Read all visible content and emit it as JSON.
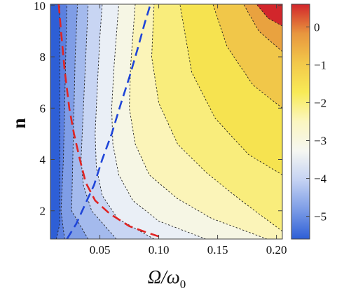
{
  "chart_data": {
    "type": "heatmap",
    "subtype": "filled-contour",
    "title": "",
    "xlabel": "Ω/ω",
    "xlabel_sub": "0",
    "ylabel": "n",
    "xlim": [
      0.008,
      0.205
    ],
    "ylim": [
      0.9,
      10.05
    ],
    "x_ticks": [
      0.05,
      0.1,
      0.15,
      0.2
    ],
    "x_tick_labels": [
      "0.05",
      "0.10",
      "0.15",
      "0.20"
    ],
    "y_ticks": [
      2,
      4,
      6,
      8,
      10
    ],
    "y_tick_labels": [
      "2",
      "4",
      "6",
      "8",
      "10"
    ],
    "colorbar": {
      "range": [
        -5.6,
        0.6
      ],
      "ticks": [
        0,
        -1,
        -2,
        -3,
        -4,
        -5
      ],
      "tick_labels": [
        "0",
        "−1",
        "−2",
        "−3",
        "−4",
        "−5"
      ],
      "colormap": [
        "#2e5fd6",
        "#7c9ce6",
        "#c4d2f3",
        "#f6f7f2",
        "#fbf6c0",
        "#f8ea56",
        "#f2c84a",
        "#e8963e",
        "#d2262b"
      ]
    },
    "contour_levels": [
      {
        "value": -5.0,
        "color": "#5b80e0",
        "points": [
          [
            0.013,
            0.9
          ],
          [
            0.016,
            1.5
          ],
          [
            0.016,
            10.05
          ]
        ]
      },
      {
        "value": -4.5,
        "color": "#7f9de6",
        "points": [
          [
            0.02,
            0.9
          ],
          [
            0.017,
            2.0
          ],
          [
            0.019,
            4.0
          ],
          [
            0.02,
            6.0
          ],
          [
            0.021,
            8.0
          ],
          [
            0.022,
            10.05
          ]
        ]
      },
      {
        "value": -4.0,
        "color": "#a4baed",
        "points": [
          [
            0.04,
            0.9
          ],
          [
            0.026,
            2.0
          ],
          [
            0.027,
            4.0
          ],
          [
            0.028,
            6.0
          ],
          [
            0.029,
            8.0
          ],
          [
            0.031,
            10.05
          ]
        ]
      },
      {
        "value": -3.5,
        "color": "#c8d5f3",
        "points": [
          [
            0.064,
            0.9
          ],
          [
            0.043,
            2.0
          ],
          [
            0.036,
            3.0
          ],
          [
            0.034,
            4.0
          ],
          [
            0.036,
            6.0
          ],
          [
            0.038,
            8.0
          ],
          [
            0.04,
            10.05
          ]
        ]
      },
      {
        "value": -3.0,
        "color": "#eaeff6",
        "points": [
          [
            0.096,
            0.9
          ],
          [
            0.065,
            1.7
          ],
          [
            0.052,
            2.6
          ],
          [
            0.047,
            3.7
          ],
          [
            0.046,
            5.0
          ],
          [
            0.048,
            7.0
          ],
          [
            0.05,
            8.8
          ],
          [
            0.052,
            10.05
          ]
        ]
      },
      {
        "value": -2.5,
        "color": "#f6f6e4",
        "points": [
          [
            0.14,
            0.9
          ],
          [
            0.1,
            1.6
          ],
          [
            0.078,
            2.4
          ],
          [
            0.066,
            3.4
          ],
          [
            0.061,
            4.6
          ],
          [
            0.06,
            6.0
          ],
          [
            0.062,
            7.6
          ],
          [
            0.066,
            10.05
          ]
        ]
      },
      {
        "value": -2.0,
        "color": "#fbf4b8",
        "points": [
          [
            0.192,
            0.9
          ],
          [
            0.145,
            1.7
          ],
          [
            0.115,
            2.5
          ],
          [
            0.092,
            3.4
          ],
          [
            0.08,
            4.6
          ],
          [
            0.075,
            6.0
          ],
          [
            0.076,
            7.6
          ],
          [
            0.08,
            10.05
          ]
        ]
      },
      {
        "value": -1.5,
        "color": "#f9ed7c",
        "points": [
          [
            0.205,
            1.2
          ],
          [
            0.17,
            2.4
          ],
          [
            0.14,
            3.5
          ],
          [
            0.116,
            4.6
          ],
          [
            0.1,
            6.2
          ],
          [
            0.094,
            8.0
          ],
          [
            0.096,
            10.05
          ]
        ]
      },
      {
        "value": -1.0,
        "color": "#f6e350",
        "points": [
          [
            0.205,
            3.4
          ],
          [
            0.176,
            4.2
          ],
          [
            0.148,
            5.6
          ],
          [
            0.128,
            7.4
          ],
          [
            0.118,
            10.05
          ]
        ]
      },
      {
        "value": -0.5,
        "color": "#f1c749",
        "points": [
          [
            0.205,
            6.0
          ],
          [
            0.18,
            6.9
          ],
          [
            0.158,
            8.4
          ],
          [
            0.146,
            10.05
          ]
        ]
      },
      {
        "value": 0.0,
        "color": "#e9a23f",
        "points": [
          [
            0.205,
            8.2
          ],
          [
            0.185,
            9.0
          ],
          [
            0.172,
            10.05
          ]
        ]
      },
      {
        "value": 0.5,
        "color": "#d2262b",
        "points": [
          [
            0.205,
            9.2
          ],
          [
            0.193,
            9.5
          ],
          [
            0.183,
            10.05
          ]
        ]
      }
    ],
    "series": [
      {
        "style": "dashed",
        "color": "#e02424",
        "points": [
          [
            0.015,
            10.05
          ],
          [
            0.017,
            9.0
          ],
          [
            0.02,
            7.5
          ],
          [
            0.024,
            6.0
          ],
          [
            0.028,
            5.0
          ],
          [
            0.033,
            4.0
          ],
          [
            0.038,
            3.1
          ],
          [
            0.046,
            2.4
          ],
          [
            0.058,
            1.9
          ],
          [
            0.075,
            1.4
          ],
          [
            0.09,
            1.15
          ],
          [
            0.1,
            1.0
          ]
        ]
      },
      {
        "style": "dashed",
        "color": "#1f45d8",
        "points": [
          [
            0.022,
            0.9
          ],
          [
            0.03,
            1.5
          ],
          [
            0.037,
            2.2
          ],
          [
            0.045,
            3.0
          ],
          [
            0.052,
            4.0
          ],
          [
            0.06,
            5.0
          ],
          [
            0.068,
            6.2
          ],
          [
            0.075,
            7.2
          ],
          [
            0.082,
            8.3
          ],
          [
            0.088,
            9.3
          ],
          [
            0.093,
            10.05
          ]
        ]
      }
    ]
  }
}
